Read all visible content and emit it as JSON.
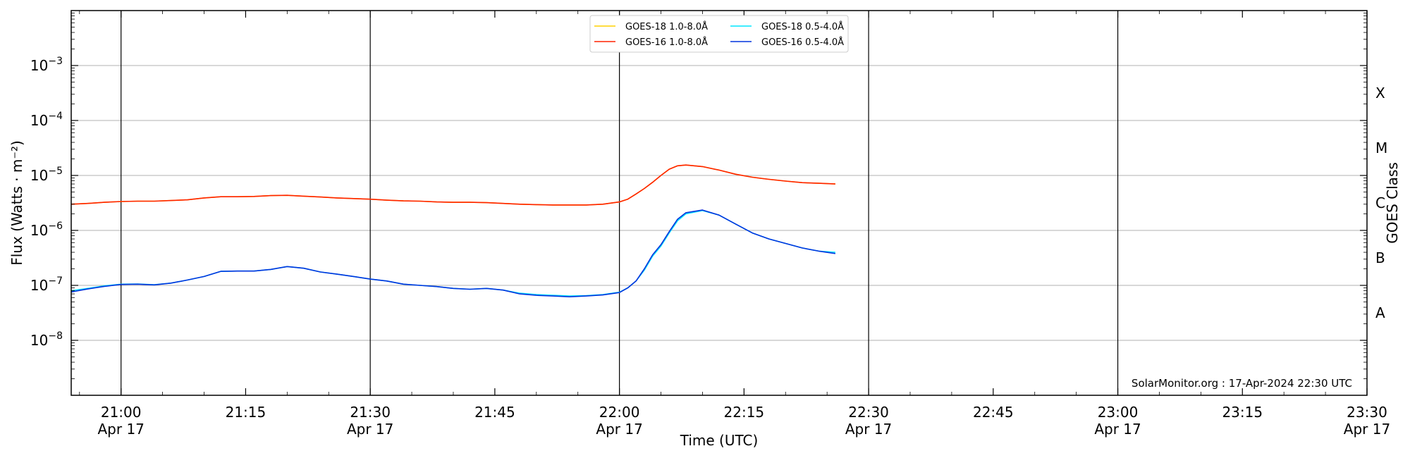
{
  "chart_data": {
    "type": "line",
    "xlabel": "Time (UTC)",
    "ylabel": "Flux (Watts · m⁻²)",
    "y2label": "GOES Class",
    "yscale": "log",
    "ylim": [
      1e-09,
      0.01
    ],
    "xlim": [
      "20:54",
      "23:30"
    ],
    "x_ticks": [
      {
        "time": "21:00",
        "label": "21:00",
        "sublabel": "Apr 17"
      },
      {
        "time": "21:15",
        "label": "21:15",
        "sublabel": ""
      },
      {
        "time": "21:30",
        "label": "21:30",
        "sublabel": "Apr 17"
      },
      {
        "time": "21:45",
        "label": "21:45",
        "sublabel": ""
      },
      {
        "time": "22:00",
        "label": "22:00",
        "sublabel": "Apr 17"
      },
      {
        "time": "22:15",
        "label": "22:15",
        "sublabel": ""
      },
      {
        "time": "22:30",
        "label": "22:30",
        "sublabel": "Apr 17"
      },
      {
        "time": "22:45",
        "label": "22:45",
        "sublabel": ""
      },
      {
        "time": "23:00",
        "label": "23:00",
        "sublabel": "Apr 17"
      },
      {
        "time": "23:15",
        "label": "23:15",
        "sublabel": ""
      },
      {
        "time": "23:30",
        "label": "23:30",
        "sublabel": "Apr 17"
      }
    ],
    "y_ticks": [
      {
        "value": 1e-08,
        "base": "10",
        "exp": "−8"
      },
      {
        "value": 1e-07,
        "base": "10",
        "exp": "−7"
      },
      {
        "value": 1e-06,
        "base": "10",
        "exp": "−6"
      },
      {
        "value": 1e-05,
        "base": "10",
        "exp": "−5"
      },
      {
        "value": 0.0001,
        "base": "10",
        "exp": "−4"
      },
      {
        "value": 0.001,
        "base": "10",
        "exp": "−3"
      }
    ],
    "class_labels": [
      {
        "value": 1e-08,
        "label": "A"
      },
      {
        "value": 1e-07,
        "label": "B"
      },
      {
        "value": 1e-06,
        "label": "C"
      },
      {
        "value": 1e-05,
        "label": "M"
      },
      {
        "value": 0.0001,
        "label": "X"
      }
    ],
    "vertical_lines": [
      "21:00",
      "21:30",
      "22:00",
      "22:30",
      "23:00"
    ],
    "grid": "horizontal",
    "legend_position": "top-center",
    "colors": {
      "goes18_long": "#ffd000",
      "goes16_long": "#ff2200",
      "goes18_short": "#00e5ff",
      "goes16_short": "#0033dd"
    },
    "x": [
      "20:54",
      "20:56",
      "20:58",
      "21:00",
      "21:02",
      "21:04",
      "21:06",
      "21:08",
      "21:10",
      "21:12",
      "21:14",
      "21:16",
      "21:18",
      "21:20",
      "21:22",
      "21:24",
      "21:26",
      "21:28",
      "21:30",
      "21:32",
      "21:34",
      "21:36",
      "21:38",
      "21:40",
      "21:42",
      "21:44",
      "21:46",
      "21:48",
      "21:50",
      "21:52",
      "21:54",
      "21:56",
      "21:58",
      "22:00",
      "22:01",
      "22:02",
      "22:03",
      "22:04",
      "22:05",
      "22:06",
      "22:07",
      "22:08",
      "22:10",
      "22:12",
      "22:14",
      "22:16",
      "22:18",
      "22:20",
      "22:22",
      "22:24",
      "22:26"
    ],
    "series": [
      {
        "name": "GOES-18 1.0-8.0Å",
        "color": "#ffd000",
        "values": [
          3e-06,
          3.1e-06,
          3.25e-06,
          3.35e-06,
          3.4e-06,
          3.4e-06,
          3.5e-06,
          3.6e-06,
          3.9e-06,
          4.1e-06,
          4.1e-06,
          4.15e-06,
          4.3e-06,
          4.35e-06,
          4.2e-06,
          4.05e-06,
          3.9e-06,
          3.8e-06,
          3.7e-06,
          3.55e-06,
          3.45e-06,
          3.4e-06,
          3.3e-06,
          3.25e-06,
          3.25e-06,
          3.2e-06,
          3.1e-06,
          3e-06,
          2.95e-06,
          2.9e-06,
          2.9e-06,
          2.9e-06,
          3e-06,
          3.3e-06,
          3.7e-06,
          4.6e-06,
          5.8e-06,
          7.5e-06,
          1e-05,
          1.3e-05,
          1.5e-05,
          1.55e-05,
          1.45e-05,
          1.25e-05,
          1.05e-05,
          9.3e-06,
          8.5e-06,
          7.9e-06,
          7.4e-06,
          7.2e-06,
          7e-06
        ]
      },
      {
        "name": "GOES-18 0.5-4.0Å",
        "color": "#00e5ff",
        "values": [
          8e-08,
          8.8e-08,
          9.8e-08,
          1.05e-07,
          1.06e-07,
          1.03e-07,
          1.1e-07,
          1.25e-07,
          1.45e-07,
          1.8e-07,
          1.82e-07,
          1.82e-07,
          1.95e-07,
          2.2e-07,
          2.05e-07,
          1.75e-07,
          1.6e-07,
          1.45e-07,
          1.3e-07,
          1.2e-07,
          1.05e-07,
          1e-07,
          9.5e-08,
          8.8e-08,
          8.5e-08,
          8.8e-08,
          8.2e-08,
          7.2e-08,
          6.8e-08,
          6.6e-08,
          6.4e-08,
          6.5e-08,
          6.8e-08,
          7.5e-08,
          9e-08,
          1.2e-07,
          1.9e-07,
          3.4e-07,
          5.2e-07,
          9e-07,
          1.5e-06,
          2e-06,
          2.3e-06,
          1.9e-06,
          1.3e-06,
          9e-07,
          7e-07,
          5.8e-07,
          4.8e-07,
          4.2e-07,
          4e-07
        ]
      },
      {
        "name": "GOES-16 1.0-8.0Å",
        "color": "#ff2200",
        "values": [
          3e-06,
          3.1e-06,
          3.25e-06,
          3.35e-06,
          3.4e-06,
          3.4e-06,
          3.5e-06,
          3.6e-06,
          3.9e-06,
          4.1e-06,
          4.1e-06,
          4.15e-06,
          4.3e-06,
          4.35e-06,
          4.2e-06,
          4.05e-06,
          3.9e-06,
          3.8e-06,
          3.7e-06,
          3.55e-06,
          3.45e-06,
          3.4e-06,
          3.3e-06,
          3.25e-06,
          3.25e-06,
          3.2e-06,
          3.1e-06,
          3e-06,
          2.95e-06,
          2.9e-06,
          2.9e-06,
          2.9e-06,
          3e-06,
          3.3e-06,
          3.7e-06,
          4.6e-06,
          5.8e-06,
          7.5e-06,
          1e-05,
          1.3e-05,
          1.5e-05,
          1.55e-05,
          1.45e-05,
          1.25e-05,
          1.05e-05,
          9.3e-06,
          8.5e-06,
          7.9e-06,
          7.4e-06,
          7.2e-06,
          7e-06
        ]
      },
      {
        "name": "GOES-16 0.5-4.0Å",
        "color": "#0033dd",
        "values": [
          7.6e-08,
          8.6e-08,
          9.6e-08,
          1.04e-07,
          1.05e-07,
          1.02e-07,
          1.1e-07,
          1.25e-07,
          1.45e-07,
          1.8e-07,
          1.82e-07,
          1.82e-07,
          1.95e-07,
          2.2e-07,
          2.05e-07,
          1.75e-07,
          1.6e-07,
          1.45e-07,
          1.3e-07,
          1.2e-07,
          1.05e-07,
          1e-07,
          9.5e-08,
          8.8e-08,
          8.5e-08,
          8.8e-08,
          8.2e-08,
          7e-08,
          6.6e-08,
          6.4e-08,
          6.2e-08,
          6.4e-08,
          6.7e-08,
          7.4e-08,
          9e-08,
          1.2e-07,
          2e-07,
          3.6e-07,
          5.5e-07,
          9.5e-07,
          1.6e-06,
          2.1e-06,
          2.35e-06,
          1.9e-06,
          1.3e-06,
          9e-07,
          7e-07,
          5.8e-07,
          4.8e-07,
          4.2e-07,
          3.8e-07
        ]
      }
    ],
    "annotation": "SolarMonitor.org : 17-Apr-2024 22:30 UTC"
  }
}
